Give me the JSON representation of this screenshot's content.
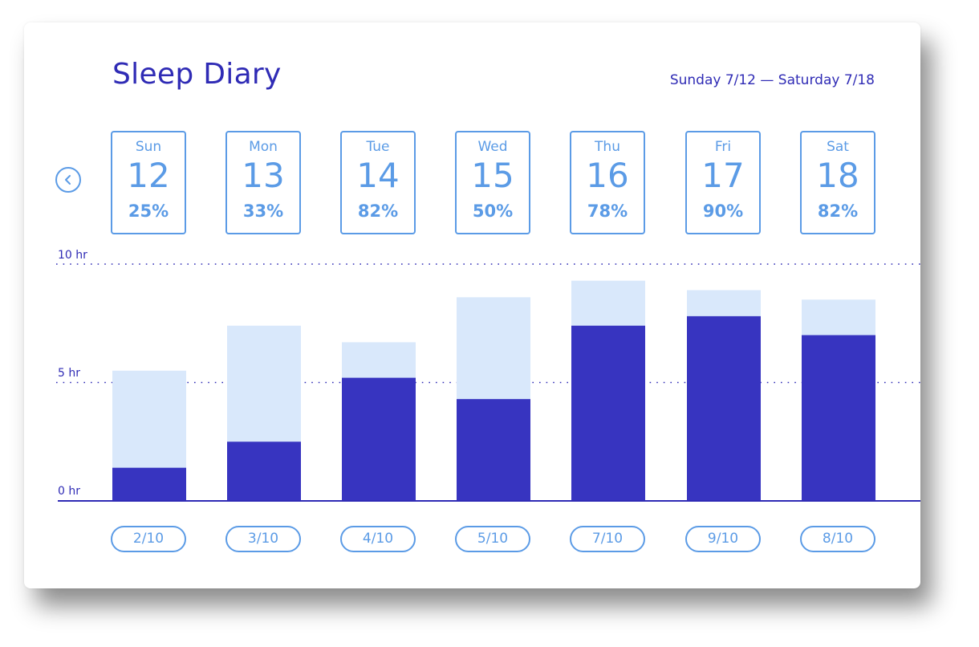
{
  "header": {
    "title": "Sleep Diary",
    "range": "Sunday 7/12 — Saturday 7/18"
  },
  "nav": {
    "prev_icon": "chevron-left-icon"
  },
  "days": [
    {
      "name": "Sun",
      "date": "12",
      "pct": "25%",
      "rating": "2/10"
    },
    {
      "name": "Mon",
      "date": "13",
      "pct": "33%",
      "rating": "3/10"
    },
    {
      "name": "Tue",
      "date": "14",
      "pct": "82%",
      "rating": "4/10"
    },
    {
      "name": "Wed",
      "date": "15",
      "pct": "50%",
      "rating": "5/10"
    },
    {
      "name": "Thu",
      "date": "16",
      "pct": "78%",
      "rating": "7/10"
    },
    {
      "name": "Fri",
      "date": "17",
      "pct": "90%",
      "rating": "9/10"
    },
    {
      "name": "Sat",
      "date": "18",
      "pct": "82%",
      "rating": "8/10"
    }
  ],
  "colors": {
    "accent": "#2f2bb5",
    "outline": "#5b9be6",
    "light_bar": "#d9e8fb",
    "dark_bar": "#3734c0"
  },
  "chart_data": {
    "type": "bar",
    "categories": [
      "Sun",
      "Mon",
      "Tue",
      "Wed",
      "Thu",
      "Fri",
      "Sat"
    ],
    "series": [
      {
        "values": [
          1.4,
          2.5,
          5.2,
          4.3,
          7.4,
          7.8,
          7.0
        ]
      },
      {
        "values": [
          5.5,
          7.4,
          6.7,
          8.6,
          9.3,
          8.9,
          8.5
        ]
      }
    ],
    "y_ticks": [
      {
        "value": 0,
        "label": "0 hr"
      },
      {
        "value": 5,
        "label": "5 hr"
      },
      {
        "value": 10,
        "label": "10 hr"
      }
    ],
    "ylim": [
      0,
      10
    ],
    "grid": true
  }
}
